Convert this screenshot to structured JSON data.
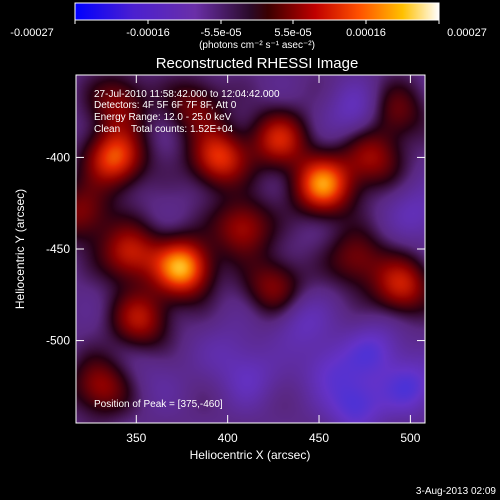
{
  "colorbar": {
    "tick_labels": [
      "-0.00027",
      "-0.00016",
      "-5.5e-05",
      "5.5e-05",
      "0.00016",
      "0.00027"
    ],
    "unit_label": "(photons cm⁻² s⁻¹ asec⁻²)",
    "range": [
      -0.00027,
      0.00027
    ]
  },
  "chart_data": {
    "type": "heatmap",
    "title": "Reconstructed RHESSI Image",
    "xlabel": "Heliocentric X (arcsec)",
    "ylabel": "Heliocentric Y (arcsec)",
    "xlim": [
      317,
      508
    ],
    "ylim": [
      -545,
      -355
    ],
    "xticks": [
      350,
      400,
      450,
      500
    ],
    "yticks": [
      -400,
      -450,
      -500
    ],
    "annotations": [
      "27-Jul-2010 11:58:42.000 to 12:04:42.000",
      "Detectors: 4F 5F 6F 7F 8F, Att 0",
      "Energy Range: 12.0 - 25.0 keV",
      "Clean    Total counts: 1.52E+04"
    ],
    "peak_label": "Position of Peak = [375,-460]",
    "peak_position": [
      375,
      -460
    ],
    "colormap": "idl-temperature-with-negative-blues",
    "sources": [
      {
        "x": 375,
        "y": -460,
        "intensity": 1.0
      },
      {
        "x": 452,
        "y": -415,
        "intensity": 0.92
      },
      {
        "x": 338,
        "y": -400,
        "intensity": 0.8
      },
      {
        "x": 395,
        "y": -400,
        "intensity": 0.72
      },
      {
        "x": 428,
        "y": -390,
        "intensity": 0.62
      },
      {
        "x": 495,
        "y": -470,
        "intensity": 0.62
      },
      {
        "x": 408,
        "y": -438,
        "intensity": 0.55
      },
      {
        "x": 346,
        "y": -452,
        "intensity": 0.62
      },
      {
        "x": 352,
        "y": -488,
        "intensity": 0.55
      },
      {
        "x": 330,
        "y": -525,
        "intensity": 0.5
      },
      {
        "x": 425,
        "y": -470,
        "intensity": 0.45
      },
      {
        "x": 470,
        "y": -455,
        "intensity": 0.42
      },
      {
        "x": 478,
        "y": -400,
        "intensity": 0.5
      },
      {
        "x": 492,
        "y": -375,
        "intensity": 0.38
      },
      {
        "x": 340,
        "y": -370,
        "intensity": 0.45
      },
      {
        "x": 382,
        "y": -372,
        "intensity": 0.4
      },
      {
        "x": 320,
        "y": -430,
        "intensity": 0.45
      },
      {
        "x": 400,
        "y": -505,
        "intensity": -0.15
      },
      {
        "x": 455,
        "y": -515,
        "intensity": -0.3
      },
      {
        "x": 470,
        "y": -535,
        "intensity": -0.45
      },
      {
        "x": 480,
        "y": -505,
        "intensity": -0.35
      },
      {
        "x": 440,
        "y": -490,
        "intensity": -0.25
      },
      {
        "x": 470,
        "y": -375,
        "intensity": -0.3
      },
      {
        "x": 412,
        "y": -520,
        "intensity": -0.25
      },
      {
        "x": 362,
        "y": -520,
        "intensity": -0.1
      },
      {
        "x": 500,
        "y": -525,
        "intensity": -0.4
      },
      {
        "x": 505,
        "y": -430,
        "intensity": -0.25
      }
    ]
  },
  "footer": {
    "timestamp": "3-Aug-2013 02:09"
  }
}
